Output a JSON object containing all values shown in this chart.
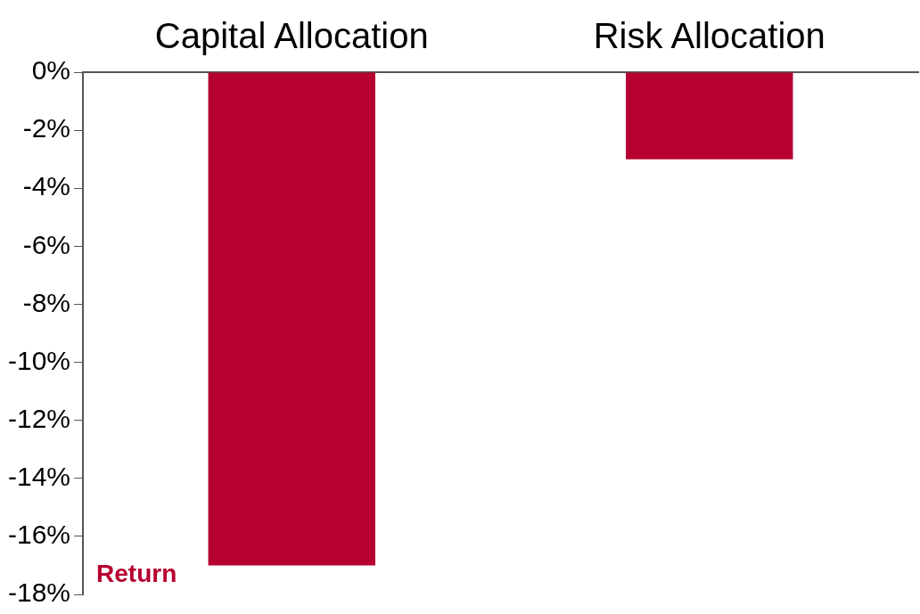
{
  "chart_data": {
    "type": "bar",
    "categories": [
      "Capital Allocation",
      "Risk Allocation"
    ],
    "series": [
      {
        "name": "Return",
        "color": "#b60030",
        "values": [
          -17,
          -3
        ]
      }
    ],
    "ylim": [
      -18,
      0
    ],
    "yticks": [
      {
        "value": 0,
        "label": "0%"
      },
      {
        "value": -2,
        "label": "-2%"
      },
      {
        "value": -4,
        "label": "-4%"
      },
      {
        "value": -6,
        "label": "-6%"
      },
      {
        "value": -8,
        "label": "-8%"
      },
      {
        "value": -10,
        "label": "-10%"
      },
      {
        "value": -12,
        "label": "-12%"
      },
      {
        "value": -14,
        "label": "-14%"
      },
      {
        "value": -16,
        "label": "-16%"
      },
      {
        "value": -18,
        "label": "-18%"
      }
    ],
    "grid": false,
    "legend": "bottom left"
  }
}
